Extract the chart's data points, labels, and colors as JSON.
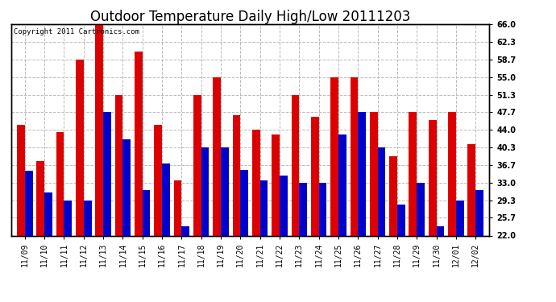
{
  "title": "Outdoor Temperature Daily High/Low 20111203",
  "copyright": "Copyright 2011 Cartronics.com",
  "categories": [
    "11/09",
    "11/10",
    "11/11",
    "11/12",
    "11/13",
    "11/14",
    "11/15",
    "11/16",
    "11/17",
    "11/18",
    "11/19",
    "11/20",
    "11/21",
    "11/22",
    "11/23",
    "11/24",
    "11/25",
    "11/26",
    "11/27",
    "11/28",
    "11/29",
    "11/30",
    "12/01",
    "12/02"
  ],
  "highs": [
    45.0,
    37.5,
    43.5,
    58.7,
    66.0,
    51.3,
    60.3,
    45.0,
    33.5,
    51.3,
    55.0,
    47.0,
    44.0,
    43.0,
    51.3,
    46.8,
    55.0,
    55.0,
    47.7,
    38.5,
    47.7,
    46.0,
    47.7,
    41.0
  ],
  "lows": [
    35.5,
    31.0,
    29.3,
    29.3,
    47.7,
    42.0,
    31.5,
    37.0,
    24.0,
    40.3,
    40.3,
    35.7,
    33.5,
    34.5,
    33.0,
    33.0,
    43.0,
    47.7,
    40.3,
    28.5,
    33.0,
    24.0,
    29.3,
    31.5
  ],
  "high_color": "#dd0000",
  "low_color": "#0000cc",
  "bg_color": "#ffffff",
  "grid_color": "#bbbbbb",
  "ylim_min": 22.0,
  "ylim_max": 66.0,
  "yticks": [
    22.0,
    25.7,
    29.3,
    33.0,
    36.7,
    40.3,
    44.0,
    47.7,
    51.3,
    55.0,
    58.7,
    62.3,
    66.0
  ],
  "bar_width": 0.4,
  "title_fontsize": 12,
  "tick_fontsize": 7,
  "copyright_fontsize": 6.5
}
